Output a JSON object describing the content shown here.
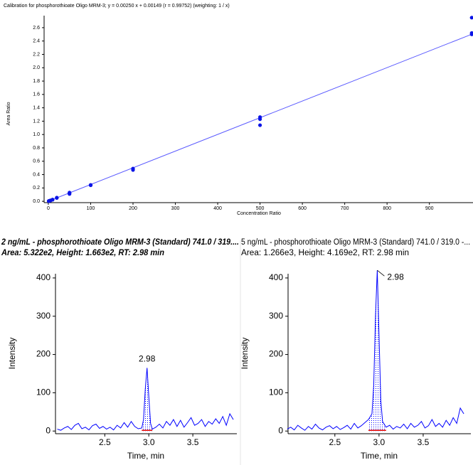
{
  "chart_data": [
    {
      "type": "scatter",
      "title": "Calibration for phosphorothioate Oligo MRM-3; y = 0.00250 x + 0.00149 (r = 0.99752)  (weighting: 1 / x)",
      "x_label": "Concentration Ratio",
      "y_label": "Area Ratio",
      "x": [
        1,
        1,
        2,
        2,
        5,
        5,
        10,
        10,
        20,
        20,
        50,
        50,
        50,
        100,
        100,
        200,
        200,
        500,
        500,
        500,
        1000,
        1000,
        1000
      ],
      "values": [
        0.003,
        0.004,
        0.006,
        0.005,
        0.013,
        0.012,
        0.026,
        0.024,
        0.05,
        0.055,
        0.11,
        0.13,
        0.12,
        0.24,
        0.245,
        0.47,
        0.49,
        1.26,
        1.23,
        1.14,
        2.75,
        2.52,
        2.5
      ],
      "color": "#0a14e6",
      "fit_x": [
        0,
        1000
      ],
      "fit_values": [
        0.00149,
        2.50149
      ],
      "fit_color": "#5a5aff",
      "xlim": [
        -10,
        1003
      ],
      "ylim": [
        -0.02,
        2.78
      ],
      "xticks": [
        0,
        100,
        200,
        300,
        400,
        500,
        600,
        700,
        800,
        900
      ],
      "yticks": [
        {
          "value": 0,
          "label": "0.0"
        },
        0.2,
        0.4,
        0.6,
        0.8,
        {
          "value": 1,
          "label": "1.0"
        },
        1.2,
        1.4,
        1.6,
        1.8,
        {
          "value": 2,
          "label": "2.0"
        },
        2.2,
        2.4,
        2.6
      ]
    },
    {
      "type": "line",
      "title": "2 ng/mL - phosphorothioate Oligo MRM-3 (Standard) 741.0 / 319....",
      "subtitle": "Area: 5.322e2, Height: 1.663e2, RT: 2.98 min",
      "x_label": "Time, min",
      "y_label": "Intensity",
      "x": [
        1.96,
        2.0,
        2.04,
        2.08,
        2.12,
        2.16,
        2.2,
        2.24,
        2.28,
        2.32,
        2.36,
        2.4,
        2.44,
        2.48,
        2.52,
        2.56,
        2.6,
        2.64,
        2.68,
        2.72,
        2.76,
        2.8,
        2.84,
        2.88,
        2.92,
        2.94,
        2.96,
        2.98,
        3.0,
        3.02,
        3.04,
        3.08,
        3.12,
        3.16,
        3.2,
        3.24,
        3.28,
        3.32,
        3.36,
        3.4,
        3.44,
        3.48,
        3.52,
        3.56,
        3.6,
        3.64,
        3.68,
        3.72,
        3.76,
        3.8,
        3.84,
        3.88,
        3.92,
        3.96
      ],
      "values": [
        5,
        2,
        8,
        12,
        4,
        15,
        20,
        6,
        10,
        3,
        14,
        18,
        7,
        12,
        5,
        10,
        3,
        15,
        8,
        22,
        10,
        25,
        12,
        6,
        8,
        30,
        110,
        165,
        90,
        20,
        5,
        10,
        18,
        8,
        25,
        15,
        30,
        12,
        28,
        10,
        22,
        35,
        15,
        20,
        30,
        12,
        25,
        18,
        32,
        20,
        38,
        15,
        45,
        30
      ],
      "color": "#0000ff",
      "baseline_color": "#e00000",
      "peak_rt": 2.98,
      "peak_start": 2.92,
      "peak_end": 3.04,
      "xlim": [
        1.94,
        4.0
      ],
      "ylim": [
        -7,
        411
      ],
      "xticks": [
        2.5,
        {
          "value": 3,
          "label": "3.0"
        },
        3.5
      ],
      "yticks": [
        0,
        100,
        200,
        300,
        400
      ]
    },
    {
      "type": "line",
      "title": "5 ng/mL - phosphorothioate Oligo MRM-3 (Standard) 741.0 / 319.0 -...",
      "subtitle": "Area: 1.266e3, Height: 4.169e2, RT: 2.98 min",
      "x_label": "Time, min",
      "y_label": "Intensity",
      "x": [
        1.96,
        2.0,
        2.04,
        2.08,
        2.12,
        2.16,
        2.2,
        2.24,
        2.28,
        2.32,
        2.36,
        2.4,
        2.44,
        2.48,
        2.52,
        2.56,
        2.6,
        2.64,
        2.68,
        2.72,
        2.76,
        2.8,
        2.84,
        2.88,
        2.92,
        2.94,
        2.96,
        2.98,
        3.0,
        3.02,
        3.04,
        3.08,
        3.12,
        3.16,
        3.2,
        3.24,
        3.28,
        3.32,
        3.36,
        3.4,
        3.44,
        3.48,
        3.52,
        3.56,
        3.6,
        3.64,
        3.68,
        3.72,
        3.76,
        3.8,
        3.84,
        3.88,
        3.92,
        3.96
      ],
      "values": [
        5,
        10,
        3,
        15,
        8,
        2,
        12,
        5,
        18,
        8,
        3,
        10,
        14,
        6,
        12,
        4,
        9,
        15,
        5,
        20,
        8,
        14,
        22,
        30,
        45,
        120,
        300,
        420,
        250,
        80,
        25,
        10,
        15,
        5,
        12,
        8,
        18,
        6,
        20,
        10,
        15,
        25,
        8,
        14,
        30,
        12,
        20,
        10,
        28,
        15,
        35,
        20,
        60,
        45
      ],
      "color": "#0000ff",
      "baseline_color": "#e00000",
      "peak_rt": 2.98,
      "peak_start": 2.88,
      "peak_end": 3.08,
      "xlim": [
        1.97,
        4.04
      ],
      "ylim": [
        -7,
        411
      ],
      "xticks": [
        2.5,
        {
          "value": 3,
          "label": "3.0"
        },
        3.5
      ],
      "yticks": [
        0,
        100,
        200,
        300,
        400
      ]
    }
  ]
}
